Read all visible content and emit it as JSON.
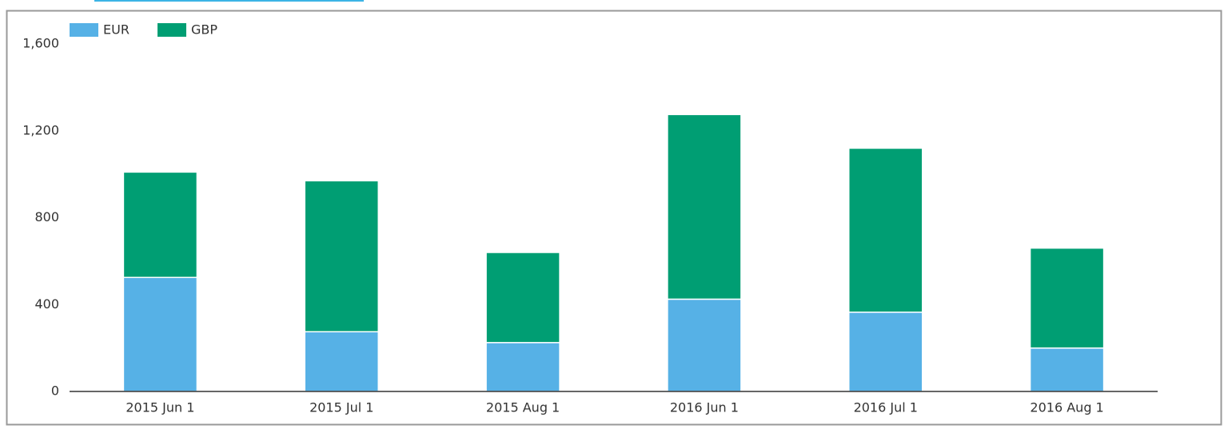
{
  "chart_data": {
    "type": "stacked_bar",
    "categories": [
      "2015 Jun 1",
      "2015 Jul 1",
      "2015 Aug 1",
      "2016 Jun 1",
      "2016 Jul 1",
      "2016 Aug 1"
    ],
    "series": [
      {
        "name": "EUR",
        "color": "#56b1e6",
        "values": [
          525,
          275,
          225,
          425,
          365,
          200
        ]
      },
      {
        "name": "GBP",
        "color": "#009e73",
        "values": [
          485,
          695,
          415,
          850,
          755,
          460
        ]
      }
    ],
    "ylim": [
      0,
      1600
    ],
    "yticks": [
      0,
      400,
      800,
      {
        "value": 1200,
        "label": "1,200"
      },
      {
        "value": 1600,
        "label": "1,600"
      }
    ],
    "grid": false,
    "legend": "top-left"
  }
}
